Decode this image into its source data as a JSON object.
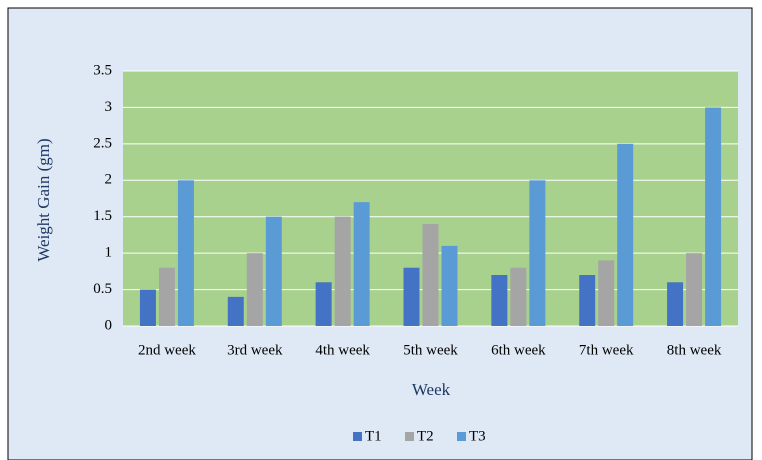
{
  "chart_data": {
    "type": "bar",
    "categories": [
      "2nd week",
      "3rd week",
      "4th week",
      "5th week",
      "6th week",
      "7th week",
      "8th week"
    ],
    "series": [
      {
        "name": "T1",
        "color": "#4472c4",
        "values": [
          0.5,
          0.4,
          0.6,
          0.8,
          0.7,
          0.7,
          0.6
        ]
      },
      {
        "name": "T2",
        "color": "#a5a5a5",
        "values": [
          0.8,
          1.0,
          1.5,
          1.4,
          0.8,
          0.9,
          1.0
        ]
      },
      {
        "name": "T3",
        "color": "#5b9bd5",
        "values": [
          2.0,
          1.5,
          1.7,
          1.1,
          2.0,
          2.5,
          3.0
        ]
      }
    ],
    "x_label": "Week",
    "y_label": "Weight Gain (gm)",
    "ylim": [
      0,
      3.5
    ],
    "yticks": [
      0,
      0.5,
      1,
      1.5,
      2,
      2.5,
      3,
      3.5
    ],
    "grid": true,
    "legend": "bottom"
  }
}
